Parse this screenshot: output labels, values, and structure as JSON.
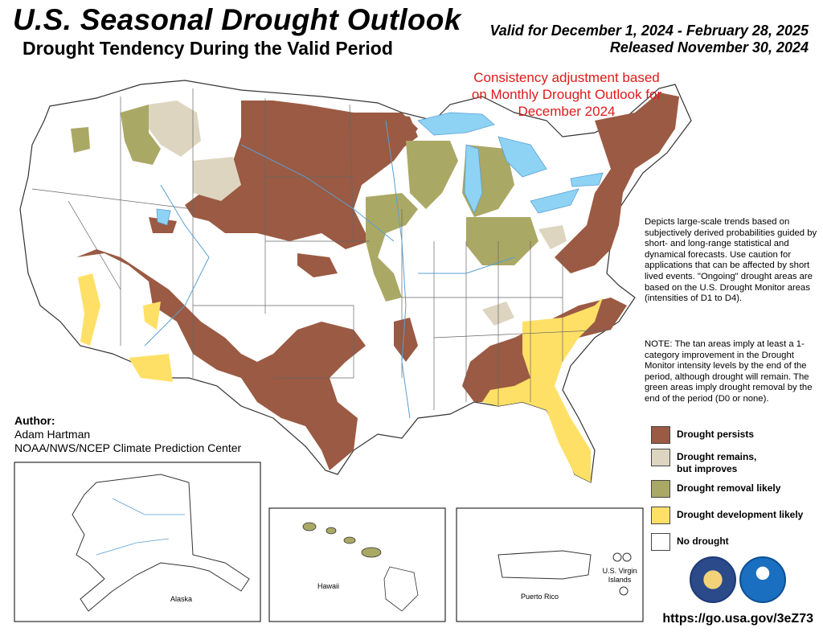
{
  "header": {
    "title": "U.S. Seasonal Drought Outlook",
    "subtitle": "Drought Tendency During the Valid Period",
    "valid_line": "Valid for December 1, 2024 - February 28, 2025",
    "released_line": "Released November 30, 2024"
  },
  "consistency_note": "Consistency adjustment based on Monthly Drought Outlook for December 2024",
  "description": "Depicts large-scale trends based on subjectively derived probabilities guided by short- and long-range statistical and dynamical forecasts. Use caution for applications that can be affected by short lived events. \"Ongoing\" drought areas are based on the U.S. Drought Monitor areas (intensities of D1 to D4).",
  "note": "NOTE: The tan areas imply at least a 1-category improvement in the Drought Monitor intensity levels by the end of the period, although drought will remain. The green areas imply drought removal by the end of the period (D0 or none).",
  "legend": [
    {
      "label": "Drought persists",
      "color": "#9b5a43"
    },
    {
      "label": "Drought remains, but improves",
      "color": "#ddd5c0"
    },
    {
      "label": "Drought removal likely",
      "color": "#aaa865"
    },
    {
      "label": "Drought development likely",
      "color": "#ffe066"
    },
    {
      "label": "No drought",
      "color": "#ffffff"
    }
  ],
  "author": {
    "heading": "Author:",
    "name": "Adam Hartman",
    "org": "NOAA/NWS/NCEP Climate Prediction Center"
  },
  "insets": {
    "alaska": "Alaska",
    "hawaii": "Hawaii",
    "puerto_rico": "Puerto Rico",
    "virgin_islands": "U.S. Virgin Islands"
  },
  "url": "https://go.usa.gov/3eZ73",
  "colors": {
    "persists": "#9b5a43",
    "improves": "#ddd5c0",
    "removal": "#aaa865",
    "development": "#ffe066",
    "water": "#8fd3f4",
    "river": "#5a9fd4",
    "border": "#555555"
  },
  "logos": [
    "department-of-commerce-seal",
    "noaa-logo"
  ]
}
